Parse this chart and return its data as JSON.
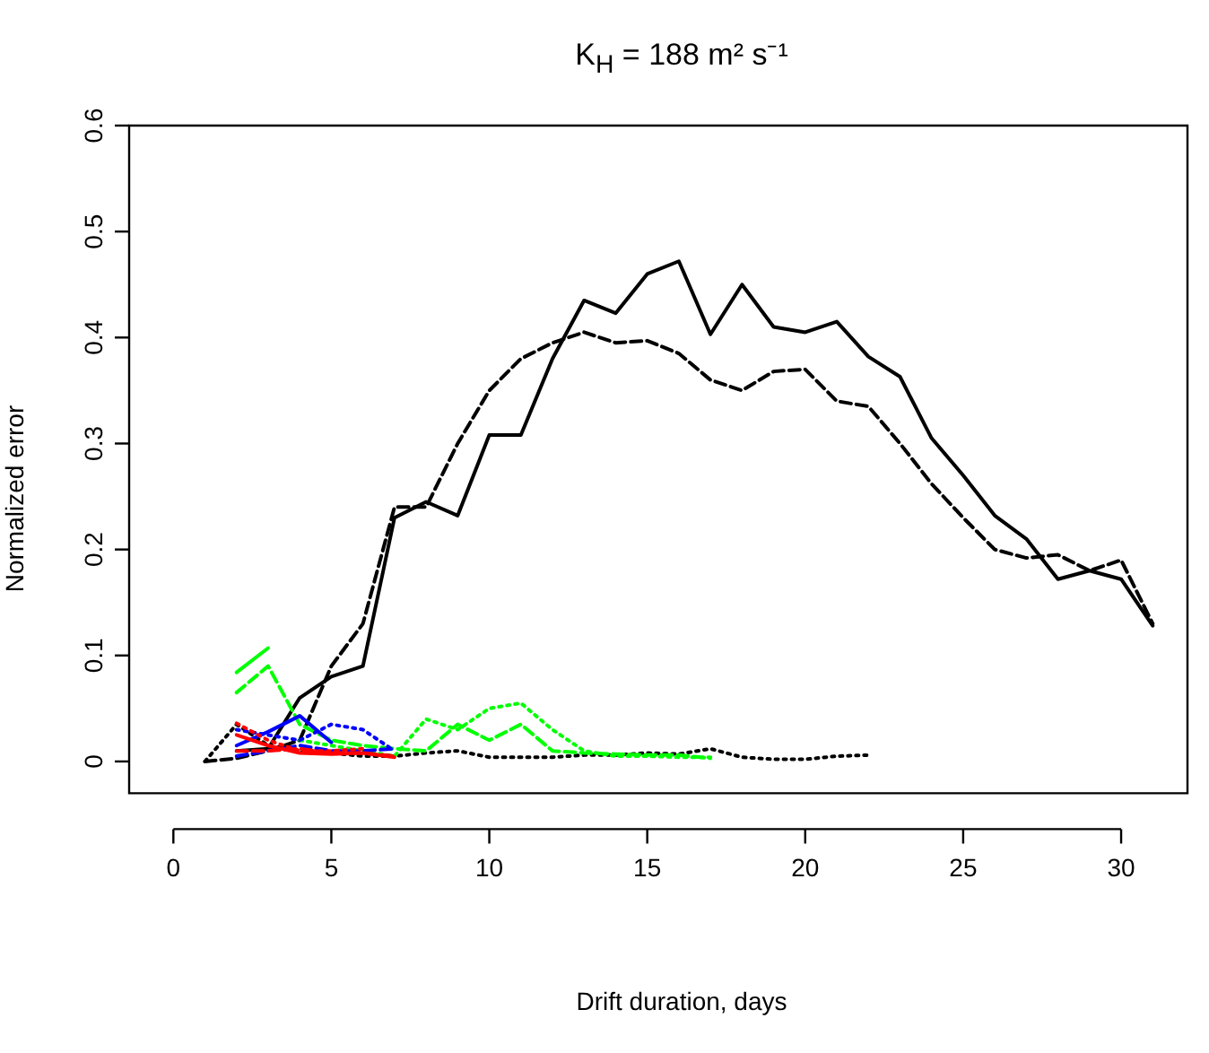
{
  "chart_data": {
    "type": "line",
    "title": "K$_{H}$ = 188 m² s⁻¹",
    "xlabel": "Drift duration, days",
    "ylabel": "Normalized error",
    "xlim": [
      -1.4,
      32.1
    ],
    "ylim": [
      -0.03,
      0.6
    ],
    "xticks": [
      0,
      5,
      10,
      15,
      20,
      25,
      30
    ],
    "yticks": [
      0,
      0.1,
      0.2,
      0.3,
      0.4,
      0.5,
      0.6
    ],
    "grid": false,
    "legend": false,
    "marker": "none",
    "series": [
      {
        "color": "#000000",
        "line_style": "solid",
        "x": [
          2,
          3,
          4,
          5,
          6,
          7,
          8,
          9,
          10,
          11,
          12,
          13,
          14,
          15,
          16,
          17,
          18,
          19,
          20,
          21,
          22,
          23,
          24,
          25,
          26,
          27,
          28,
          29,
          30,
          31
        ],
        "values": [
          0.01,
          0.012,
          0.06,
          0.08,
          0.09,
          0.23,
          0.245,
          0.232,
          0.308,
          0.308,
          0.38,
          0.435,
          0.423,
          0.46,
          0.472,
          0.403,
          0.45,
          0.41,
          0.405,
          0.415,
          0.382,
          0.363,
          0.305,
          0.27,
          0.232,
          0.21,
          0.172,
          0.18,
          0.172,
          0.128
        ]
      },
      {
        "color": "#000000",
        "line_style": "dashed",
        "x": [
          1,
          2,
          3,
          4,
          5,
          6,
          7,
          8,
          9,
          10,
          11,
          12,
          13,
          14,
          15,
          16,
          17,
          18,
          19,
          20,
          21,
          22,
          23,
          24,
          25,
          26,
          27,
          28,
          29,
          30,
          31
        ],
        "values": [
          0,
          0.003,
          0.01,
          0.02,
          0.09,
          0.13,
          0.24,
          0.24,
          0.3,
          0.35,
          0.38,
          0.395,
          0.405,
          0.395,
          0.397,
          0.385,
          0.36,
          0.35,
          0.368,
          0.37,
          0.34,
          0.335,
          0.3,
          0.262,
          0.23,
          0.2,
          0.192,
          0.195,
          0.18,
          0.19,
          0.13
        ]
      },
      {
        "color": "#000000",
        "line_style": "dotted",
        "x": [
          1,
          2,
          3,
          4,
          5,
          6,
          7,
          8,
          9,
          10,
          11,
          12,
          13,
          14,
          15,
          16,
          17,
          18,
          19,
          20,
          21,
          22
        ],
        "values": [
          0,
          0.035,
          0.015,
          0.01,
          0.008,
          0.005,
          0.005,
          0.008,
          0.01,
          0.004,
          0.004,
          0.004,
          0.006,
          0.006,
          0.008,
          0.007,
          0.012,
          0.004,
          0.002,
          0.002,
          0.005,
          0.006
        ]
      },
      {
        "color": "#00ff00",
        "line_style": "solid",
        "x": [
          2,
          3
        ],
        "values": [
          0.084,
          0.107
        ]
      },
      {
        "color": "#00ff00",
        "line_style": "dashed",
        "x": [
          2,
          3,
          4,
          5,
          6,
          7,
          8,
          9,
          10,
          11,
          12,
          13,
          14,
          15,
          16,
          17
        ],
        "values": [
          0.065,
          0.09,
          0.035,
          0.02,
          0.015,
          0.012,
          0.01,
          0.035,
          0.02,
          0.035,
          0.01,
          0.008,
          0.007,
          0.006,
          0.006,
          0.003
        ]
      },
      {
        "color": "#00ff00",
        "line_style": "dotted",
        "x": [
          4,
          5,
          6,
          7,
          8,
          9,
          10,
          11,
          12,
          13,
          14,
          15,
          16,
          17
        ],
        "values": [
          0.02,
          0.015,
          0.01,
          0.005,
          0.04,
          0.03,
          0.05,
          0.055,
          0.03,
          0.01,
          0.005,
          0.005,
          0.004,
          0.004
        ]
      },
      {
        "color": "#0000ff",
        "line_style": "solid",
        "x": [
          2,
          3,
          4,
          5
        ],
        "values": [
          0.015,
          0.028,
          0.043,
          0.018
        ]
      },
      {
        "color": "#0000ff",
        "line_style": "dashed",
        "x": [
          2,
          3,
          4,
          5,
          6,
          7
        ],
        "values": [
          0.005,
          0.01,
          0.015,
          0.01,
          0.01,
          0.012
        ]
      },
      {
        "color": "#0000ff",
        "line_style": "dotted",
        "x": [
          2,
          3,
          4,
          5,
          6,
          7
        ],
        "values": [
          0.03,
          0.025,
          0.02,
          0.035,
          0.03,
          0.01
        ]
      },
      {
        "color": "#ff0000",
        "line_style": "solid",
        "x": [
          2,
          3,
          4,
          5,
          6,
          7
        ],
        "values": [
          0.025,
          0.015,
          0.008,
          0.007,
          0.008,
          0.004
        ]
      },
      {
        "color": "#ff0000",
        "line_style": "dashed",
        "x": [
          2,
          3,
          4,
          5,
          6,
          7
        ],
        "values": [
          0.01,
          0.01,
          0.012,
          0.008,
          0.008,
          0.005
        ]
      },
      {
        "color": "#ff0000",
        "line_style": "dotted",
        "x": [
          2,
          3,
          4,
          5,
          6
        ],
        "values": [
          0.036,
          0.02,
          0.01,
          0.01,
          0.012
        ]
      }
    ]
  }
}
